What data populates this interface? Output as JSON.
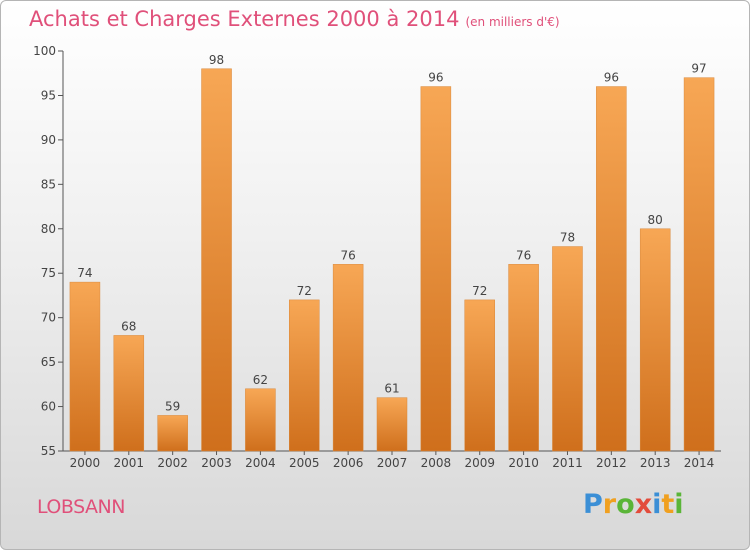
{
  "header": {
    "title": "Achats et Charges Externes 2000 à 2014",
    "subtitle": "(en milliers d'€)"
  },
  "footer": {
    "commune": "LOBSANN",
    "logo": "Proxiti"
  },
  "colors": {
    "title": "#e0507a",
    "bar_top": "#f7a755",
    "bar_bottom": "#cf6f1c"
  },
  "chart_data": {
    "type": "bar",
    "title": "Achats et Charges Externes 2000 à 2014",
    "subtitle": "(en milliers d'€)",
    "categories": [
      "2000",
      "2001",
      "2002",
      "2003",
      "2004",
      "2005",
      "2006",
      "2007",
      "2008",
      "2009",
      "2010",
      "2011",
      "2012",
      "2013",
      "2014"
    ],
    "values": [
      74,
      68,
      59,
      98,
      62,
      72,
      76,
      61,
      96,
      72,
      76,
      78,
      96,
      80,
      97
    ],
    "ylim": [
      55,
      100
    ],
    "yticks": [
      55,
      60,
      65,
      70,
      75,
      80,
      85,
      90,
      95,
      100
    ],
    "grid": false,
    "data_labels": true
  }
}
